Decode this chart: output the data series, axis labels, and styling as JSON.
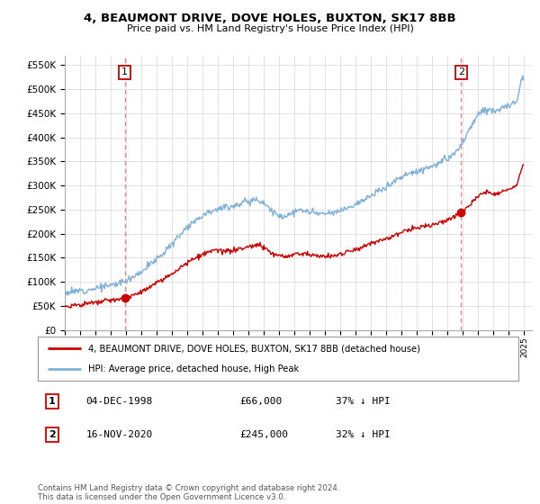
{
  "title": "4, BEAUMONT DRIVE, DOVE HOLES, BUXTON, SK17 8BB",
  "subtitle": "Price paid vs. HM Land Registry's House Price Index (HPI)",
  "x_start": 1995.0,
  "x_end": 2025.5,
  "y_min": 0,
  "y_max": 570000,
  "yticks": [
    0,
    50000,
    100000,
    150000,
    200000,
    250000,
    300000,
    350000,
    400000,
    450000,
    500000,
    550000
  ],
  "ytick_labels": [
    "£0",
    "£50K",
    "£100K",
    "£150K",
    "£200K",
    "£250K",
    "£300K",
    "£350K",
    "£400K",
    "£450K",
    "£500K",
    "£550K"
  ],
  "xtick_years": [
    1995,
    1996,
    1997,
    1998,
    1999,
    2000,
    2001,
    2002,
    2003,
    2004,
    2005,
    2006,
    2007,
    2008,
    2009,
    2010,
    2011,
    2012,
    2013,
    2014,
    2015,
    2016,
    2017,
    2018,
    2019,
    2020,
    2021,
    2022,
    2023,
    2024,
    2025
  ],
  "sale1_x": 1998.92,
  "sale1_y": 66000,
  "sale1_label": "1",
  "sale2_x": 2020.88,
  "sale2_y": 245000,
  "sale2_label": "2",
  "sale1_vline_x": 1998.92,
  "sale2_vline_x": 2020.88,
  "red_line_color": "#cc0000",
  "blue_line_color": "#7fb0d8",
  "sale_marker_color": "#cc0000",
  "vline_color": "#e88080",
  "grid_color": "#dddddd",
  "background_color": "#ffffff",
  "legend_label_red": "4, BEAUMONT DRIVE, DOVE HOLES, BUXTON, SK17 8BB (detached house)",
  "legend_label_blue": "HPI: Average price, detached house, High Peak",
  "table_row1": [
    "1",
    "04-DEC-1998",
    "£66,000",
    "37% ↓ HPI"
  ],
  "table_row2": [
    "2",
    "16-NOV-2020",
    "£245,000",
    "32% ↓ HPI"
  ],
  "footnote": "Contains HM Land Registry data © Crown copyright and database right 2024.\nThis data is licensed under the Open Government Licence v3.0."
}
